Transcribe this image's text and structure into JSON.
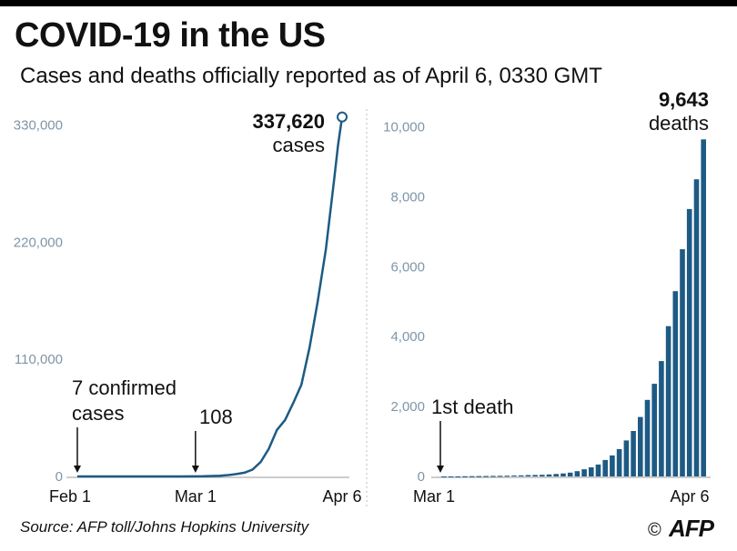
{
  "title": "COVID-19 in the US",
  "subtitle": "Cases and deaths officially reported as of April 6, 0330 GMT",
  "source": "Source: AFP toll/Johns Hopkins University",
  "copyright": "©",
  "logo_text": "AFP",
  "colors": {
    "series": "#1d5a84",
    "axis_text": "#7f95a7",
    "text": "#111111",
    "gridline": "#c9c9c9"
  },
  "chart_data": [
    {
      "type": "line",
      "series_name": "cases",
      "x_tick_labels": [
        "Feb 1",
        "Mar 1",
        "Apr 6"
      ],
      "y_ticks": [
        0,
        110000,
        220000,
        330000
      ],
      "y_tick_labels": [
        "0",
        "110,000",
        "220,000",
        "330,000"
      ],
      "ylim": [
        0,
        345000
      ],
      "x_day_range": [
        0,
        65
      ],
      "points": [
        [
          0,
          7
        ],
        [
          5,
          11
        ],
        [
          10,
          12
        ],
        [
          15,
          15
        ],
        [
          20,
          15
        ],
        [
          25,
          15
        ],
        [
          29,
          108
        ],
        [
          31,
          200
        ],
        [
          33,
          400
        ],
        [
          35,
          700
        ],
        [
          37,
          1300
        ],
        [
          39,
          2200
        ],
        [
          41,
          3500
        ],
        [
          43,
          6400
        ],
        [
          45,
          13600
        ],
        [
          47,
          26000
        ],
        [
          49,
          43700
        ],
        [
          51,
          53000
        ],
        [
          53,
          69000
        ],
        [
          55,
          86000
        ],
        [
          57,
          121000
        ],
        [
          59,
          164000
        ],
        [
          61,
          213000
        ],
        [
          63,
          277000
        ],
        [
          64,
          311000
        ],
        [
          65,
          337620
        ]
      ],
      "annotations": {
        "start_value": "7 confirmed",
        "start_value_2": "cases",
        "mid_value": "108",
        "end_value": "337,620",
        "end_unit": "cases"
      }
    },
    {
      "type": "bar",
      "series_name": "deaths",
      "x_tick_labels": [
        "Mar 1",
        "Apr 6"
      ],
      "y_ticks": [
        0,
        2000,
        4000,
        6000,
        8000,
        10000
      ],
      "y_tick_labels": [
        "0",
        "2,000",
        "4,000",
        "6,000",
        "8,000",
        "10,000"
      ],
      "ylim": [
        0,
        10300
      ],
      "values": [
        1,
        1,
        2,
        6,
        9,
        11,
        12,
        15,
        19,
        22,
        26,
        30,
        38,
        41,
        48,
        57,
        69,
        86,
        110,
        150,
        205,
        260,
        340,
        470,
        600,
        780,
        1030,
        1300,
        1700,
        2190,
        2650,
        3300,
        4300,
        5300,
        6500,
        7650,
        8500,
        9643
      ],
      "annotations": {
        "start_label": "1st death",
        "end_value": "9,643",
        "end_unit": "deaths"
      }
    }
  ]
}
